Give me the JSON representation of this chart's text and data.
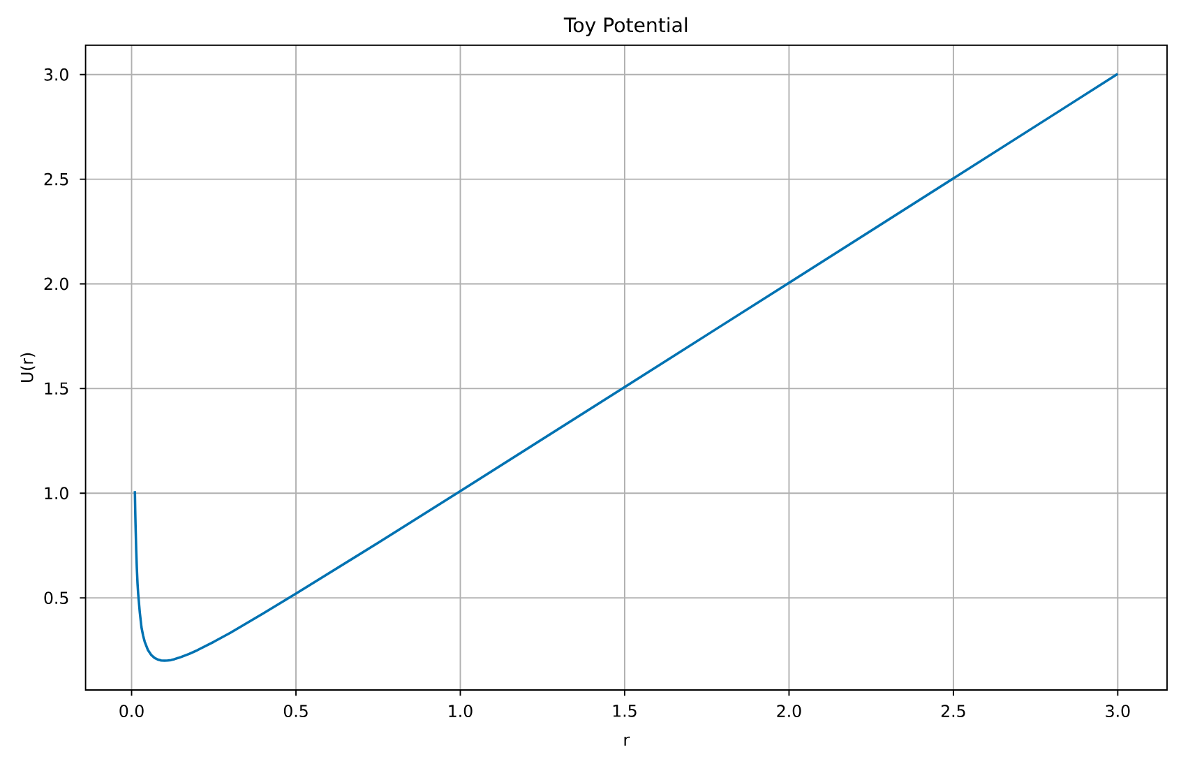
{
  "chart_data": {
    "type": "line",
    "title": "Toy Potential",
    "xlabel": "r",
    "ylabel": "U(r)",
    "x": [
      0.01,
      0.011,
      0.012,
      0.014,
      0.016,
      0.018,
      0.02,
      0.025,
      0.03,
      0.035,
      0.04,
      0.045,
      0.05,
      0.06,
      0.07,
      0.08,
      0.09,
      0.1,
      0.11,
      0.12,
      0.13,
      0.15,
      0.175,
      0.2,
      0.25,
      0.3,
      0.4,
      0.5,
      0.75,
      1.0,
      1.5,
      2.0,
      2.5,
      3.0
    ],
    "values": [
      1.01,
      0.92,
      0.85,
      0.73,
      0.64,
      0.57,
      0.52,
      0.43,
      0.36,
      0.32,
      0.29,
      0.27,
      0.25,
      0.227,
      0.213,
      0.205,
      0.201,
      0.2,
      0.201,
      0.203,
      0.207,
      0.217,
      0.232,
      0.25,
      0.29,
      0.333,
      0.425,
      0.52,
      0.763,
      1.01,
      1.507,
      2.005,
      2.504,
      3.003
    ],
    "color": "#0072b2",
    "xlim": [
      -0.14,
      3.15
    ],
    "ylim": [
      0.06,
      3.14
    ],
    "xticks": [
      {
        "value": 0,
        "label": "0.0"
      },
      {
        "value": 0.5,
        "label": "0.5"
      },
      {
        "value": 1,
        "label": "1.0"
      },
      {
        "value": 1.5,
        "label": "1.5"
      },
      {
        "value": 2,
        "label": "2.0"
      },
      {
        "value": 2.5,
        "label": "2.5"
      },
      {
        "value": 3,
        "label": "3.0"
      }
    ],
    "yticks": [
      0.5,
      {
        "value": 1,
        "label": "1.0"
      },
      1.5,
      {
        "value": 2,
        "label": "2.0"
      },
      2.5,
      {
        "value": 3,
        "label": "3.0"
      }
    ],
    "grid": true
  }
}
